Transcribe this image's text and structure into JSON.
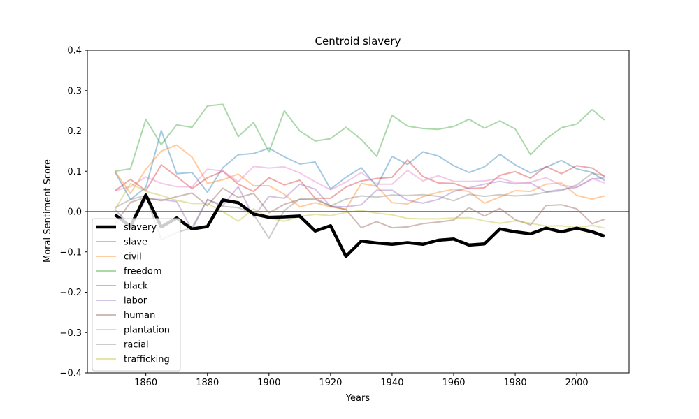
{
  "chart_data": {
    "type": "line",
    "title": "Centroid slavery",
    "xlabel": "Years",
    "ylabel": "Moral Sentiment Score",
    "xlim": [
      1841,
      2017
    ],
    "ylim": [
      -0.4,
      0.4
    ],
    "x_ticks": [
      1860,
      1880,
      1900,
      1920,
      1940,
      1960,
      1980,
      2000
    ],
    "y_ticks": [
      -0.4,
      -0.3,
      -0.2,
      -0.1,
      0.0,
      0.1,
      0.2,
      0.3,
      0.4
    ],
    "x_tick_labels": [
      "1860",
      "1880",
      "1900",
      "1920",
      "1940",
      "1960",
      "1980",
      "2000"
    ],
    "y_tick_labels": [
      "−0.4",
      "−0.3",
      "−0.2",
      "−0.1",
      "0.0",
      "0.1",
      "0.2",
      "0.3",
      "0.4"
    ],
    "grid": false,
    "legend_position": "lower-left",
    "reference_line": {
      "y": 0.0,
      "color": "#808080"
    },
    "x": [
      1850,
      1855,
      1860,
      1865,
      1870,
      1875,
      1880,
      1885,
      1890,
      1895,
      1900,
      1905,
      1910,
      1915,
      1920,
      1925,
      1930,
      1935,
      1940,
      1945,
      1950,
      1955,
      1960,
      1965,
      1970,
      1975,
      1980,
      1985,
      1990,
      1995,
      2000,
      2005,
      2009
    ],
    "series": [
      {
        "name": "slavery",
        "color": "#000000",
        "opacity": 1.0,
        "width": 4.5,
        "values": [
          -0.008,
          -0.037,
          0.041,
          -0.038,
          -0.016,
          -0.043,
          -0.037,
          0.029,
          0.022,
          -0.006,
          -0.014,
          -0.013,
          -0.011,
          -0.048,
          -0.035,
          -0.111,
          -0.073,
          -0.078,
          -0.081,
          -0.077,
          -0.081,
          -0.071,
          -0.068,
          -0.083,
          -0.08,
          -0.043,
          -0.05,
          -0.055,
          -0.041,
          -0.05,
          -0.041,
          -0.05,
          -0.061
        ]
      },
      {
        "name": "slave",
        "color": "#1f77b4",
        "opacity": 0.4,
        "width": 2,
        "values": [
          0.098,
          0.03,
          0.06,
          0.201,
          0.094,
          0.097,
          0.048,
          0.109,
          0.141,
          0.144,
          0.157,
          0.136,
          0.118,
          0.123,
          0.056,
          0.085,
          0.109,
          0.062,
          0.137,
          0.117,
          0.148,
          0.138,
          0.114,
          0.097,
          0.111,
          0.142,
          0.116,
          0.096,
          0.11,
          0.127,
          0.106,
          0.097,
          0.077
        ]
      },
      {
        "name": "civil",
        "color": "#ff7f0e",
        "opacity": 0.4,
        "width": 2,
        "values": [
          0.1,
          0.045,
          0.105,
          0.15,
          0.165,
          0.135,
          0.07,
          0.079,
          0.093,
          0.064,
          0.064,
          0.043,
          0.012,
          0.022,
          0.012,
          0.006,
          0.07,
          0.063,
          0.022,
          0.019,
          0.037,
          0.048,
          0.055,
          0.05,
          0.021,
          0.036,
          0.052,
          0.05,
          0.068,
          0.071,
          0.04,
          0.031,
          0.039
        ]
      },
      {
        "name": "freedom",
        "color": "#2ca02c",
        "opacity": 0.4,
        "width": 2,
        "values": [
          0.1,
          0.106,
          0.229,
          0.166,
          0.215,
          0.209,
          0.262,
          0.266,
          0.186,
          0.221,
          0.148,
          0.25,
          0.2,
          0.175,
          0.181,
          0.209,
          0.179,
          0.137,
          0.239,
          0.212,
          0.206,
          0.204,
          0.211,
          0.229,
          0.207,
          0.225,
          0.205,
          0.141,
          0.18,
          0.208,
          0.217,
          0.253,
          0.227
        ]
      },
      {
        "name": "black",
        "color": "#d62728",
        "opacity": 0.4,
        "width": 2,
        "values": [
          0.052,
          0.08,
          0.052,
          0.116,
          0.087,
          0.057,
          0.084,
          0.1,
          0.068,
          0.05,
          0.084,
          0.066,
          0.078,
          0.033,
          0.033,
          0.061,
          0.076,
          0.082,
          0.085,
          0.128,
          0.087,
          0.071,
          0.07,
          0.057,
          0.059,
          0.09,
          0.099,
          0.083,
          0.112,
          0.094,
          0.114,
          0.108,
          0.087
        ]
      },
      {
        "name": "labor",
        "color": "#9467bd",
        "opacity": 0.4,
        "width": 2,
        "values": [
          0.005,
          -0.036,
          0.031,
          0.03,
          0.025,
          -0.045,
          0.03,
          0.015,
          0.062,
          -0.013,
          0.038,
          0.033,
          0.068,
          0.056,
          0.013,
          0.012,
          0.017,
          0.053,
          0.053,
          0.028,
          0.021,
          0.03,
          0.05,
          0.059,
          0.068,
          0.075,
          0.069,
          0.071,
          0.049,
          0.055,
          0.06,
          0.081,
          0.084
        ]
      },
      {
        "name": "human",
        "color": "#8c564b",
        "opacity": 0.4,
        "width": 2,
        "values": [
          -0.03,
          0.023,
          0.035,
          0.027,
          0.037,
          0.046,
          0.015,
          0.058,
          0.035,
          0.045,
          -0.003,
          0.018,
          0.03,
          0.03,
          0.014,
          0.005,
          -0.04,
          -0.025,
          -0.04,
          -0.038,
          -0.03,
          -0.026,
          -0.021,
          0.01,
          -0.011,
          0.008,
          -0.02,
          -0.033,
          0.015,
          0.017,
          0.007,
          -0.03,
          -0.019
        ]
      },
      {
        "name": "plantation",
        "color": "#e377c2",
        "opacity": 0.4,
        "width": 2,
        "values": [
          0.052,
          0.062,
          0.086,
          0.07,
          0.062,
          0.061,
          0.105,
          0.101,
          0.074,
          0.112,
          0.108,
          0.111,
          0.096,
          0.074,
          0.054,
          0.073,
          0.097,
          0.068,
          0.068,
          0.102,
          0.076,
          0.089,
          0.075,
          0.075,
          0.076,
          0.083,
          0.072,
          0.073,
          0.084,
          0.065,
          0.061,
          0.082,
          0.071
        ]
      },
      {
        "name": "racial",
        "color": "#7f7f7f",
        "opacity": 0.4,
        "width": 2,
        "values": [
          0.01,
          0.03,
          0.04,
          -0.07,
          -0.052,
          -0.04,
          0.03,
          0.013,
          0.01,
          -0.007,
          -0.066,
          0.003,
          0.031,
          0.033,
          0.014,
          0.031,
          0.039,
          0.036,
          0.041,
          0.04,
          0.042,
          0.038,
          0.027,
          0.043,
          0.038,
          0.042,
          0.039,
          0.041,
          0.048,
          0.052,
          0.066,
          0.095,
          0.089
        ]
      },
      {
        "name": "trafficking",
        "color": "#bcbd22",
        "opacity": 0.4,
        "width": 2,
        "values": [
          0.005,
          0.07,
          0.05,
          0.04,
          0.028,
          0.02,
          0.02,
          0.0,
          -0.024,
          0.007,
          -0.016,
          -0.024,
          -0.012,
          -0.007,
          -0.01,
          -0.002,
          0.003,
          -0.004,
          -0.008,
          -0.017,
          -0.018,
          -0.018,
          -0.016,
          -0.015,
          -0.023,
          -0.029,
          -0.023,
          -0.029,
          -0.036,
          -0.035,
          -0.04,
          -0.034,
          -0.041
        ]
      }
    ]
  }
}
